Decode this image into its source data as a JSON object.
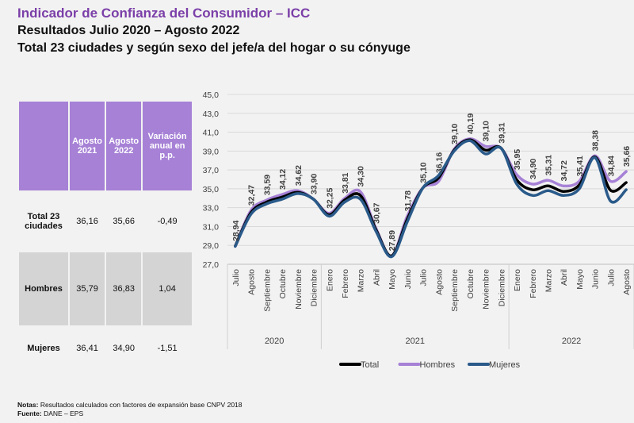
{
  "header": {
    "title": "Indicador de Confianza del Consumidor – ICC",
    "subtitle1": "Resultados Julio 2020 – Agosto 2022",
    "subtitle2": "Total 23 ciudades y según sexo del jefe/a del hogar o su cónyuge"
  },
  "table": {
    "columns": [
      "",
      "Agosto 2021",
      "Agosto 2022",
      "Variación anual en p.p."
    ],
    "rows": [
      {
        "label": "Total 23 ciudades",
        "v2021": "36,16",
        "v2022": "35,66",
        "var": "-0,49"
      },
      {
        "label": "Hombres",
        "v2021": "35,79",
        "v2022": "36,83",
        "var": "1,04"
      },
      {
        "label": "Mujeres",
        "v2021": "36,41",
        "v2022": "34,90",
        "var": "-1,51"
      }
    ]
  },
  "chart_data": {
    "type": "line",
    "categories": [
      "Julio",
      "Agosto",
      "Septiembre",
      "Octubre",
      "Noviembre",
      "Diciembre",
      "Enero",
      "Febrero",
      "Marzo",
      "Abril",
      "Mayo",
      "Junio",
      "Julio",
      "Agosto",
      "Septiembre",
      "Octubre",
      "Noviembre",
      "Diciembre",
      "Enero",
      "Febrero",
      "Marzo",
      "Abril",
      "Mayo",
      "Junio",
      "Julio",
      "Agosto"
    ],
    "years": [
      {
        "label": "2020",
        "count": 6
      },
      {
        "label": "2021",
        "count": 12
      },
      {
        "label": "2022",
        "count": 8
      }
    ],
    "ylim": [
      27,
      45
    ],
    "yticks": [
      "27,0",
      "29,0",
      "31,0",
      "33,0",
      "35,0",
      "37,0",
      "39,0",
      "41,0",
      "43,0",
      "45,0"
    ],
    "series": [
      {
        "name": "Total",
        "color": "#000000",
        "values": [
          28.94,
          32.47,
          33.59,
          34.12,
          34.62,
          33.9,
          32.25,
          33.81,
          34.3,
          30.67,
          27.89,
          31.78,
          35.1,
          36.16,
          39.1,
          40.19,
          39.1,
          39.31,
          35.95,
          34.9,
          35.31,
          34.72,
          35.41,
          38.38,
          34.84,
          35.66
        ]
      },
      {
        "name": "Hombres",
        "color": "#a681d6",
        "values": [
          28.9,
          32.7,
          33.8,
          34.4,
          34.8,
          33.9,
          32.4,
          34.0,
          34.7,
          30.8,
          27.9,
          32.1,
          35.1,
          35.79,
          39.2,
          40.3,
          39.5,
          39.3,
          36.5,
          35.5,
          35.9,
          35.3,
          35.8,
          38.5,
          35.8,
          36.83
        ]
      },
      {
        "name": "Mujeres",
        "color": "#2a5a8a",
        "values": [
          28.9,
          32.3,
          33.4,
          33.9,
          34.5,
          33.9,
          32.1,
          33.6,
          33.9,
          30.5,
          27.8,
          31.5,
          35.1,
          36.41,
          39.0,
          40.1,
          38.7,
          39.3,
          35.5,
          34.3,
          34.8,
          34.3,
          35.0,
          38.3,
          33.7,
          34.9
        ]
      }
    ],
    "data_labels": [
      "28,94",
      "32,47",
      "33,59",
      "34,12",
      "34,62",
      "33,90",
      "32,25",
      "33,81",
      "34,30",
      "30,67",
      "27,89",
      "31,78",
      "35,10",
      "36,16",
      "39,10",
      "40,19",
      "39,10",
      "39,31",
      "35,95",
      "34,90",
      "35,31",
      "34,72",
      "35,41",
      "38,38",
      "34,84",
      "35,66"
    ],
    "legend": "bottom",
    "grid": true
  },
  "notes": {
    "notes_label": "Notas:",
    "notes_text": " Resultados calculados con factores de expansión base CNPV 2018",
    "source_label": "Fuente:",
    "source_text": " DANE – EPS"
  }
}
